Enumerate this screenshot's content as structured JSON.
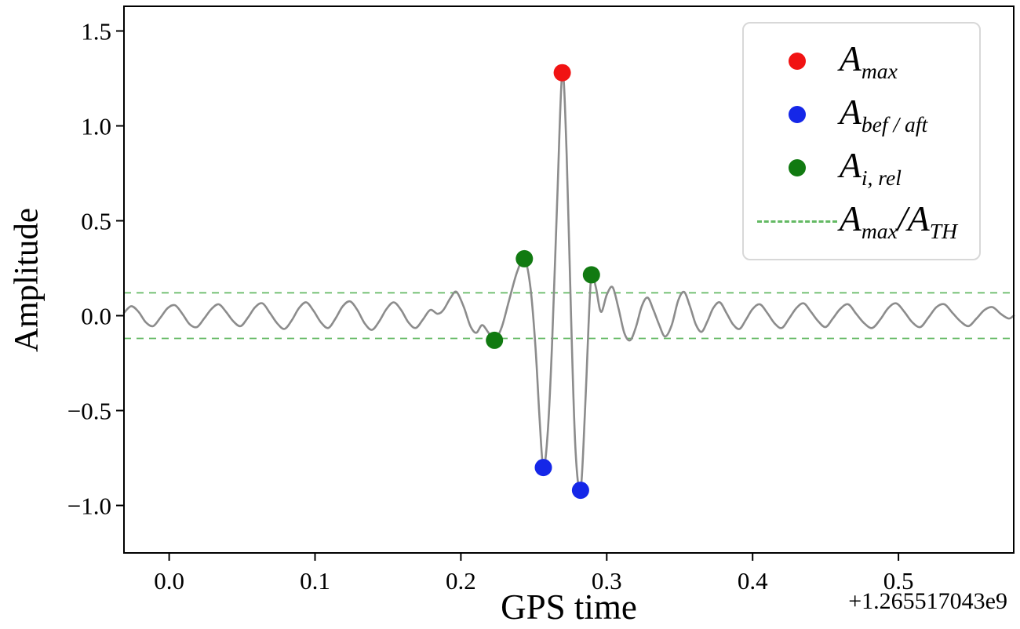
{
  "chart_data": {
    "type": "line",
    "title": "",
    "xlabel": "GPS time",
    "ylabel": "Amplitude",
    "x_offset_label": "+1.265517043e9",
    "xlim": [
      -0.031,
      0.579
    ],
    "ylim": [
      -1.25,
      1.63
    ],
    "x_ticks": [
      0.0,
      0.1,
      0.2,
      0.3,
      0.4,
      0.5
    ],
    "x_tick_labels": [
      "0.0",
      "0.1",
      "0.2",
      "0.3",
      "0.4",
      "0.5"
    ],
    "y_ticks": [
      -1.0,
      -0.5,
      0.0,
      0.5,
      1.0,
      1.5
    ],
    "y_tick_labels": [
      "−1.0",
      "−0.5",
      "0.0",
      "0.5",
      "1.0",
      "1.5"
    ],
    "grid": false,
    "line": {
      "color": "#8c8c8c",
      "width": 2.6,
      "points": [
        [
          -0.031,
          0.015
        ],
        [
          -0.026,
          0.05
        ],
        [
          -0.021,
          0.02
        ],
        [
          -0.016,
          -0.035
        ],
        [
          -0.011,
          -0.055
        ],
        [
          -0.006,
          -0.01
        ],
        [
          -0.001,
          0.04
        ],
        [
          0.004,
          0.055
        ],
        [
          0.009,
          0.01
        ],
        [
          0.014,
          -0.045
        ],
        [
          0.019,
          -0.06
        ],
        [
          0.024,
          -0.015
        ],
        [
          0.029,
          0.035
        ],
        [
          0.034,
          0.06
        ],
        [
          0.039,
          0.02
        ],
        [
          0.044,
          -0.03
        ],
        [
          0.049,
          -0.055
        ],
        [
          0.054,
          -0.01
        ],
        [
          0.059,
          0.045
        ],
        [
          0.064,
          0.065
        ],
        [
          0.069,
          0.015
        ],
        [
          0.074,
          -0.04
        ],
        [
          0.079,
          -0.07
        ],
        [
          0.084,
          -0.025
        ],
        [
          0.089,
          0.04
        ],
        [
          0.094,
          0.07
        ],
        [
          0.099,
          0.025
        ],
        [
          0.104,
          -0.035
        ],
        [
          0.109,
          -0.065
        ],
        [
          0.114,
          -0.015
        ],
        [
          0.119,
          0.05
        ],
        [
          0.124,
          0.075
        ],
        [
          0.129,
          0.03
        ],
        [
          0.134,
          -0.04
        ],
        [
          0.139,
          -0.075
        ],
        [
          0.144,
          -0.03
        ],
        [
          0.149,
          0.035
        ],
        [
          0.154,
          0.07
        ],
        [
          0.159,
          0.03
        ],
        [
          0.164,
          -0.035
        ],
        [
          0.169,
          -0.065
        ],
        [
          0.174,
          -0.02
        ],
        [
          0.179,
          0.03
        ],
        [
          0.184,
          0.01
        ],
        [
          0.188,
          0.03
        ],
        [
          0.193,
          0.095
        ],
        [
          0.197,
          0.125
        ],
        [
          0.202,
          0.045
        ],
        [
          0.2065,
          -0.055
        ],
        [
          0.2105,
          -0.09
        ],
        [
          0.2145,
          -0.05
        ],
        [
          0.2185,
          -0.085
        ],
        [
          0.223,
          -0.13
        ],
        [
          0.228,
          -0.06
        ],
        [
          0.233,
          0.08
        ],
        [
          0.2385,
          0.23
        ],
        [
          0.2435,
          0.3
        ],
        [
          0.2475,
          0.16
        ],
        [
          0.251,
          -0.15
        ],
        [
          0.254,
          -0.55
        ],
        [
          0.2565,
          -0.8
        ],
        [
          0.2595,
          -0.62
        ],
        [
          0.2625,
          -0.15
        ],
        [
          0.266,
          0.6
        ],
        [
          0.2695,
          1.28
        ],
        [
          0.2725,
          0.85
        ],
        [
          0.2755,
          0.0
        ],
        [
          0.2785,
          -0.7
        ],
        [
          0.282,
          -0.92
        ],
        [
          0.285,
          -0.52
        ],
        [
          0.2875,
          -0.05
        ],
        [
          0.2895,
          0.215
        ],
        [
          0.2925,
          0.15
        ],
        [
          0.296,
          0.02
        ],
        [
          0.3,
          0.11
        ],
        [
          0.304,
          0.15
        ],
        [
          0.308,
          0.04
        ],
        [
          0.312,
          -0.09
        ],
        [
          0.316,
          -0.13
        ],
        [
          0.32,
          -0.06
        ],
        [
          0.324,
          0.05
        ],
        [
          0.328,
          0.095
        ],
        [
          0.332,
          0.03
        ],
        [
          0.336,
          -0.05
        ],
        [
          0.34,
          -0.11
        ],
        [
          0.3445,
          -0.05
        ],
        [
          0.349,
          0.08
        ],
        [
          0.353,
          0.125
        ],
        [
          0.357,
          0.05
        ],
        [
          0.361,
          -0.045
        ],
        [
          0.365,
          -0.085
        ],
        [
          0.369,
          -0.03
        ],
        [
          0.373,
          0.04
        ],
        [
          0.3775,
          0.07
        ],
        [
          0.382,
          0.015
        ],
        [
          0.3865,
          -0.045
        ],
        [
          0.391,
          -0.07
        ],
        [
          0.3955,
          -0.02
        ],
        [
          0.4,
          0.035
        ],
        [
          0.405,
          0.06
        ],
        [
          0.41,
          0.015
        ],
        [
          0.415,
          -0.04
        ],
        [
          0.42,
          -0.065
        ],
        [
          0.425,
          -0.015
        ],
        [
          0.43,
          0.04
        ],
        [
          0.435,
          0.065
        ],
        [
          0.44,
          0.02
        ],
        [
          0.445,
          -0.03
        ],
        [
          0.45,
          -0.06
        ],
        [
          0.455,
          -0.015
        ],
        [
          0.46,
          0.035
        ],
        [
          0.4655,
          0.06
        ],
        [
          0.471,
          0.01
        ],
        [
          0.4765,
          -0.04
        ],
        [
          0.482,
          -0.065
        ],
        [
          0.4875,
          -0.02
        ],
        [
          0.493,
          0.04
        ],
        [
          0.4985,
          0.065
        ],
        [
          0.504,
          0.02
        ],
        [
          0.5095,
          -0.035
        ],
        [
          0.515,
          -0.06
        ],
        [
          0.5205,
          -0.01
        ],
        [
          0.526,
          0.045
        ],
        [
          0.5315,
          0.06
        ],
        [
          0.537,
          0.015
        ],
        [
          0.5425,
          -0.03
        ],
        [
          0.548,
          -0.055
        ],
        [
          0.5535,
          -0.015
        ],
        [
          0.559,
          0.03
        ],
        [
          0.5645,
          0.045
        ],
        [
          0.57,
          0.01
        ],
        [
          0.5755,
          -0.015
        ],
        [
          0.579,
          0.0
        ]
      ]
    },
    "thresholds": {
      "color": "#63b963",
      "values": [
        0.12,
        -0.12
      ],
      "label": "A_{max}/A_{TH}"
    },
    "markers": [
      {
        "name": "A-max",
        "label": "A_{max}",
        "color": "#f11313",
        "points": [
          [
            0.2695,
            1.28
          ]
        ]
      },
      {
        "name": "A-bef-aft",
        "label": "A_{bef / aft}",
        "color": "#1527e8",
        "points": [
          [
            0.2565,
            -0.8
          ],
          [
            0.282,
            -0.92
          ]
        ]
      },
      {
        "name": "A-i-rel",
        "label": "A_{i, rel}",
        "color": "#117a11",
        "points": [
          [
            0.223,
            -0.13
          ],
          [
            0.2435,
            0.3
          ],
          [
            0.2895,
            0.215
          ]
        ]
      }
    ],
    "legend": {
      "position": "upper right",
      "entries": [
        {
          "type": "dot",
          "color": "#f11313",
          "label": "A_{max}"
        },
        {
          "type": "dot",
          "color": "#1527e8",
          "label": "A_{bef / aft}"
        },
        {
          "type": "dot",
          "color": "#117a11",
          "label": "A_{i, rel}"
        },
        {
          "type": "dashed-line",
          "color": "#63b963",
          "label": "A_{max}/A_{TH}"
        }
      ]
    }
  }
}
